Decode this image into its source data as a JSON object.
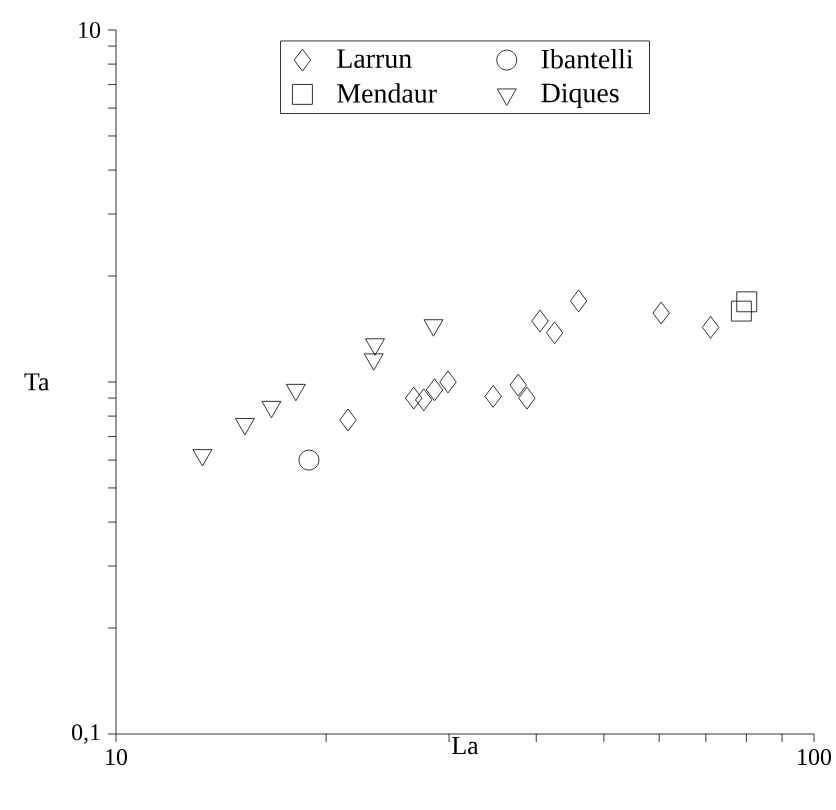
{
  "chart_data": {
    "type": "scatter",
    "xlabel": "La",
    "ylabel": "Ta",
    "log": "xy",
    "xlim": [
      10,
      100
    ],
    "ylim": [
      0.1,
      10
    ],
    "xticks": [
      10,
      {
        "value": 20,
        "label": null
      },
      {
        "value": 30,
        "label": null
      },
      {
        "value": 40,
        "label": null
      },
      {
        "value": 50,
        "label": null
      },
      {
        "value": 60,
        "label": null
      },
      {
        "value": 70,
        "label": null
      },
      {
        "value": 80,
        "label": null
      },
      {
        "value": 90,
        "label": null
      },
      100
    ],
    "yticks": [
      {
        "value": 0.1,
        "label": "0,1"
      },
      {
        "value": 0.2,
        "label": null
      },
      {
        "value": 0.3,
        "label": null
      },
      {
        "value": 0.4,
        "label": null
      },
      {
        "value": 0.5,
        "label": null
      },
      {
        "value": 0.6,
        "label": null
      },
      {
        "value": 0.7,
        "label": null
      },
      {
        "value": 0.8,
        "label": null
      },
      {
        "value": 0.9,
        "label": null
      },
      {
        "value": 1,
        "label": null
      },
      {
        "value": 2,
        "label": null
      },
      {
        "value": 3,
        "label": null
      },
      {
        "value": 4,
        "label": null
      },
      {
        "value": 5,
        "label": null
      },
      {
        "value": 6,
        "label": null
      },
      {
        "value": 7,
        "label": null
      },
      {
        "value": 8,
        "label": null
      },
      {
        "value": 9,
        "label": null
      },
      10
    ],
    "grid": false,
    "legend": "top",
    "series": [
      {
        "name": "Larrun",
        "color": "#000000",
        "marker": "diamond",
        "x": [
          21.5,
          26.7,
          27.6,
          28.6,
          29.9,
          34.7,
          37.7,
          38.8,
          40.5,
          42.5,
          46.0,
          60.4,
          71.1
        ],
        "values": [
          0.78,
          0.9,
          0.89,
          0.95,
          1.0,
          0.91,
          0.98,
          0.9,
          1.49,
          1.38,
          1.7,
          1.57,
          1.43
        ]
      },
      {
        "name": "Ibantelli",
        "color": "#000000",
        "marker": "circle",
        "x": [
          18.9
        ],
        "values": [
          0.6
        ]
      },
      {
        "name": "Mendaur",
        "color": "#000000",
        "marker": "square",
        "x": [
          80.1,
          78.7
        ],
        "values": [
          1.69,
          1.59
        ]
      },
      {
        "name": "Diques",
        "color": "#000000",
        "marker": "triangle",
        "x": [
          13.3,
          15.3,
          16.7,
          18.1,
          23.4,
          23.5,
          28.5
        ],
        "values": [
          0.62,
          0.76,
          0.85,
          0.95,
          1.16,
          1.28,
          1.45
        ]
      }
    ]
  }
}
